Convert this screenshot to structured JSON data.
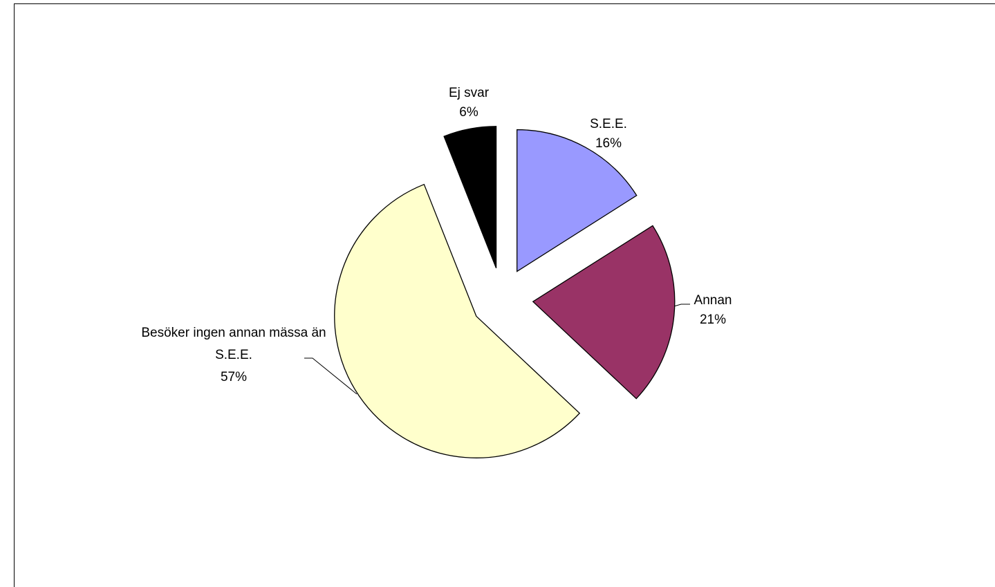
{
  "chart_data": {
    "type": "pie",
    "categories": [
      "S.E.E.",
      "Annan",
      "Besöker ingen annan mässa än S.E.E.",
      "Ej svar"
    ],
    "values": [
      16,
      21,
      57,
      6
    ],
    "value_labels": [
      "16%",
      "21%",
      "57%",
      "6%"
    ],
    "colors": [
      "#9999ff",
      "#993366",
      "#ffffcc",
      "#000000"
    ]
  }
}
